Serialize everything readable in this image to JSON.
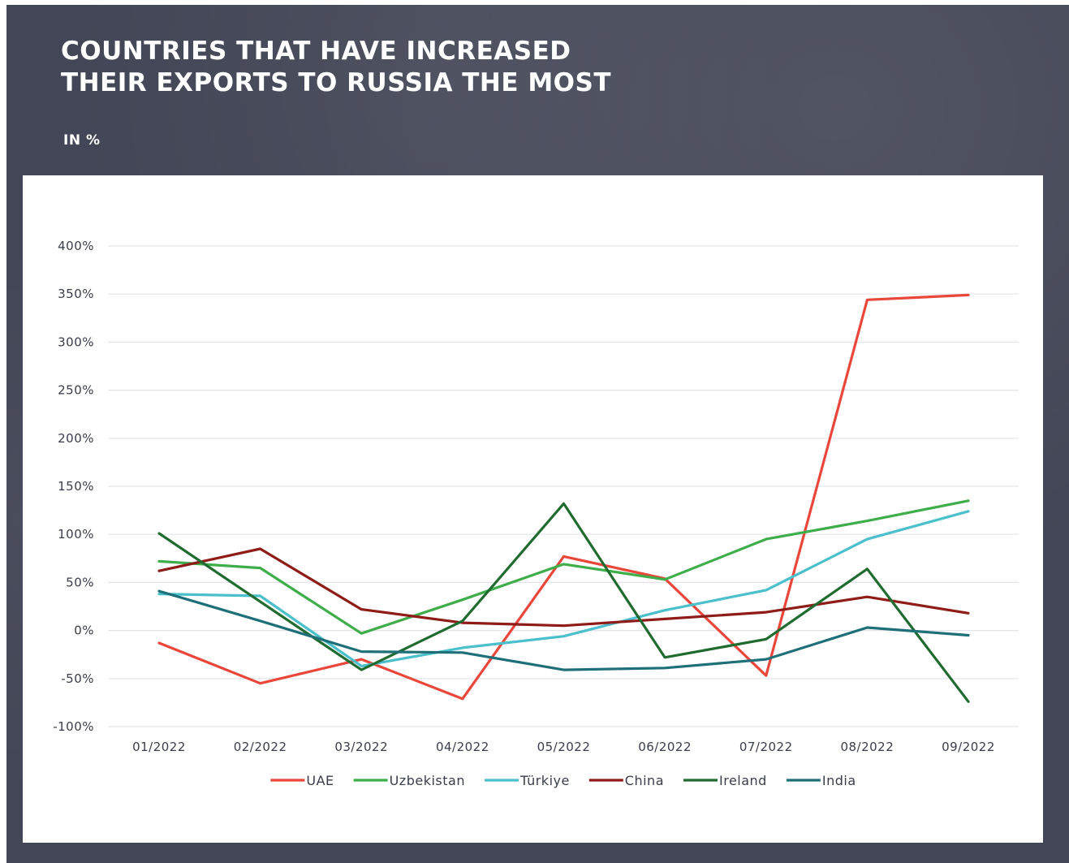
{
  "header": {
    "title_line1": "COUNTRIES THAT HAVE INCREASED",
    "title_line2": "THEIR EXPORTS TO RUSSIA THE MOST",
    "subtitle": "IN %"
  },
  "chart_data": {
    "type": "line",
    "title": "COUNTRIES THAT HAVE INCREASED THEIR EXPORTS TO RUSSIA THE MOST",
    "subtitle": "IN %",
    "x": [
      "01/2022",
      "02/2022",
      "03/2022",
      "04/2022",
      "05/2022",
      "06/2022",
      "07/2022",
      "08/2022",
      "09/2022"
    ],
    "ylim": [
      -100,
      400
    ],
    "yticks": [
      -100,
      -50,
      0,
      50,
      100,
      150,
      200,
      250,
      300,
      350,
      400
    ],
    "ytick_labels": [
      "-100%",
      "-50%",
      "0%",
      "50%",
      "100%",
      "150%",
      "200%",
      "250%",
      "300%",
      "350%",
      "400%"
    ],
    "grid": true,
    "legend_position": "bottom",
    "series": [
      {
        "name": "UAE",
        "color": "#e8473a",
        "values": [
          -13,
          -55,
          -30,
          -71,
          77,
          54,
          -47,
          344,
          349
        ]
      },
      {
        "name": "Uzbekistan",
        "color": "#3fae4a",
        "values": [
          72,
          65,
          -3,
          32,
          69,
          53,
          95,
          114,
          135
        ]
      },
      {
        "name": "Türkiye",
        "color": "#4bbfcc",
        "values": [
          38,
          36,
          -37,
          -18,
          -6,
          21,
          42,
          95,
          124
        ]
      },
      {
        "name": "China",
        "color": "#8e1c17",
        "values": [
          62,
          85,
          22,
          8,
          5,
          12,
          19,
          35,
          18
        ]
      },
      {
        "name": "Ireland",
        "color": "#206b30",
        "values": [
          101,
          30,
          -41,
          10,
          132,
          -28,
          -9,
          64,
          -74
        ]
      },
      {
        "name": "India",
        "color": "#1f6f78",
        "values": [
          41,
          10,
          -22,
          -23,
          -41,
          -39,
          -30,
          3,
          -5
        ]
      }
    ]
  }
}
